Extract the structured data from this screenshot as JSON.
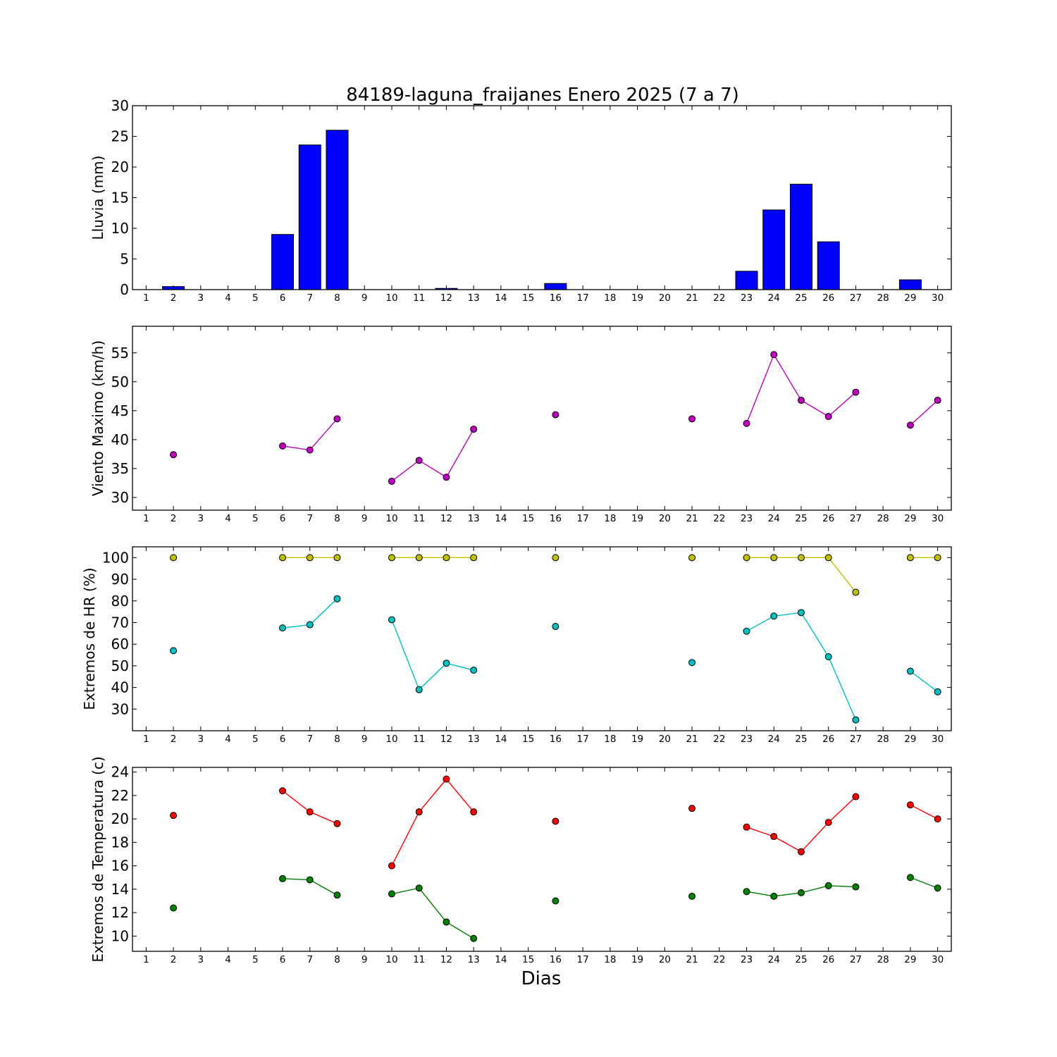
{
  "figure": {
    "title": "84189-laguna_fraijanes Enero 2025  (7 a 7)",
    "xlabel": "Dias"
  },
  "chart_data": [
    {
      "type": "bar",
      "ylabel": "Lluvia (mm)",
      "x": [
        1,
        2,
        3,
        4,
        5,
        6,
        7,
        8,
        9,
        10,
        11,
        12,
        13,
        14,
        15,
        16,
        17,
        18,
        19,
        20,
        21,
        22,
        23,
        24,
        25,
        26,
        27,
        28,
        29,
        30
      ],
      "xlim": [
        0.5,
        30.5
      ],
      "ylim": [
        0,
        30
      ],
      "yticks": [
        0,
        5,
        10,
        15,
        20,
        25,
        30
      ],
      "grid": false,
      "series": [
        {
          "color": "#0000ff",
          "values": [
            null,
            0.5,
            null,
            null,
            null,
            9.0,
            23.6,
            26.0,
            null,
            0.0,
            0.0,
            0.2,
            0.0,
            null,
            null,
            1.0,
            null,
            null,
            null,
            null,
            0.0,
            null,
            3.0,
            13.0,
            17.2,
            7.8,
            null,
            null,
            1.6,
            null
          ]
        }
      ]
    },
    {
      "type": "line",
      "ylabel": "Viento Maximo (km/h)",
      "x": [
        1,
        2,
        3,
        4,
        5,
        6,
        7,
        8,
        9,
        10,
        11,
        12,
        13,
        14,
        15,
        16,
        17,
        18,
        19,
        20,
        21,
        22,
        23,
        24,
        25,
        26,
        27,
        28,
        29,
        30
      ],
      "xlim": [
        0.5,
        30.5
      ],
      "ylim": [
        27.8,
        59.6
      ],
      "yticks": [
        30,
        35,
        40,
        45,
        50,
        55
      ],
      "grid": false,
      "series": [
        {
          "color": "#bf00bf",
          "values": [
            null,
            37.4,
            null,
            null,
            null,
            38.9,
            38.2,
            43.6,
            null,
            32.8,
            36.4,
            33.5,
            41.8,
            null,
            null,
            44.3,
            null,
            null,
            null,
            null,
            43.6,
            null,
            42.8,
            54.7,
            46.8,
            44.0,
            48.2,
            null,
            42.5,
            46.8
          ]
        }
      ]
    },
    {
      "type": "line",
      "ylabel": "Extremos de HR (%)",
      "x": [
        1,
        2,
        3,
        4,
        5,
        6,
        7,
        8,
        9,
        10,
        11,
        12,
        13,
        14,
        15,
        16,
        17,
        18,
        19,
        20,
        21,
        22,
        23,
        24,
        25,
        26,
        27,
        28,
        29,
        30
      ],
      "xlim": [
        0.5,
        30.5
      ],
      "ylim": [
        20,
        105
      ],
      "yticks": [
        30,
        40,
        50,
        60,
        70,
        80,
        90,
        100
      ],
      "grid": false,
      "series": [
        {
          "color": "#bfbf00",
          "values": [
            null,
            100,
            null,
            null,
            null,
            100,
            100,
            100,
            null,
            100,
            100,
            100,
            100,
            null,
            null,
            100,
            null,
            null,
            null,
            null,
            100,
            null,
            100,
            100,
            100,
            100,
            84,
            null,
            100,
            100
          ]
        },
        {
          "color": "#00bfbf",
          "values": [
            null,
            57,
            null,
            null,
            null,
            67.5,
            69,
            81,
            null,
            71.3,
            39,
            51.2,
            48,
            null,
            null,
            68.2,
            null,
            null,
            null,
            null,
            51.5,
            null,
            66,
            73,
            74.6,
            54.2,
            25,
            null,
            47.5,
            38
          ]
        }
      ]
    },
    {
      "type": "line",
      "ylabel": "Extremos de Temperatura (c)",
      "x": [
        1,
        2,
        3,
        4,
        5,
        6,
        7,
        8,
        9,
        10,
        11,
        12,
        13,
        14,
        15,
        16,
        17,
        18,
        19,
        20,
        21,
        22,
        23,
        24,
        25,
        26,
        27,
        28,
        29,
        30
      ],
      "xlim": [
        0.5,
        30.5
      ],
      "ylim": [
        8.7,
        24.4
      ],
      "yticks": [
        10,
        12,
        14,
        16,
        18,
        20,
        22,
        24
      ],
      "grid": false,
      "series": [
        {
          "color": "#ff0000",
          "values": [
            null,
            20.3,
            null,
            null,
            null,
            22.4,
            20.6,
            19.6,
            null,
            16.0,
            20.6,
            23.4,
            20.6,
            null,
            null,
            19.8,
            null,
            null,
            null,
            null,
            20.9,
            null,
            19.3,
            18.5,
            17.2,
            19.7,
            21.9,
            null,
            21.2,
            20.0
          ]
        },
        {
          "color": "#008000",
          "values": [
            null,
            12.4,
            null,
            null,
            null,
            14.9,
            14.8,
            13.5,
            null,
            13.6,
            14.1,
            11.2,
            9.8,
            null,
            null,
            13.0,
            null,
            null,
            null,
            null,
            13.4,
            null,
            13.8,
            13.4,
            13.7,
            14.3,
            14.2,
            null,
            15.0,
            14.1
          ]
        }
      ]
    }
  ]
}
